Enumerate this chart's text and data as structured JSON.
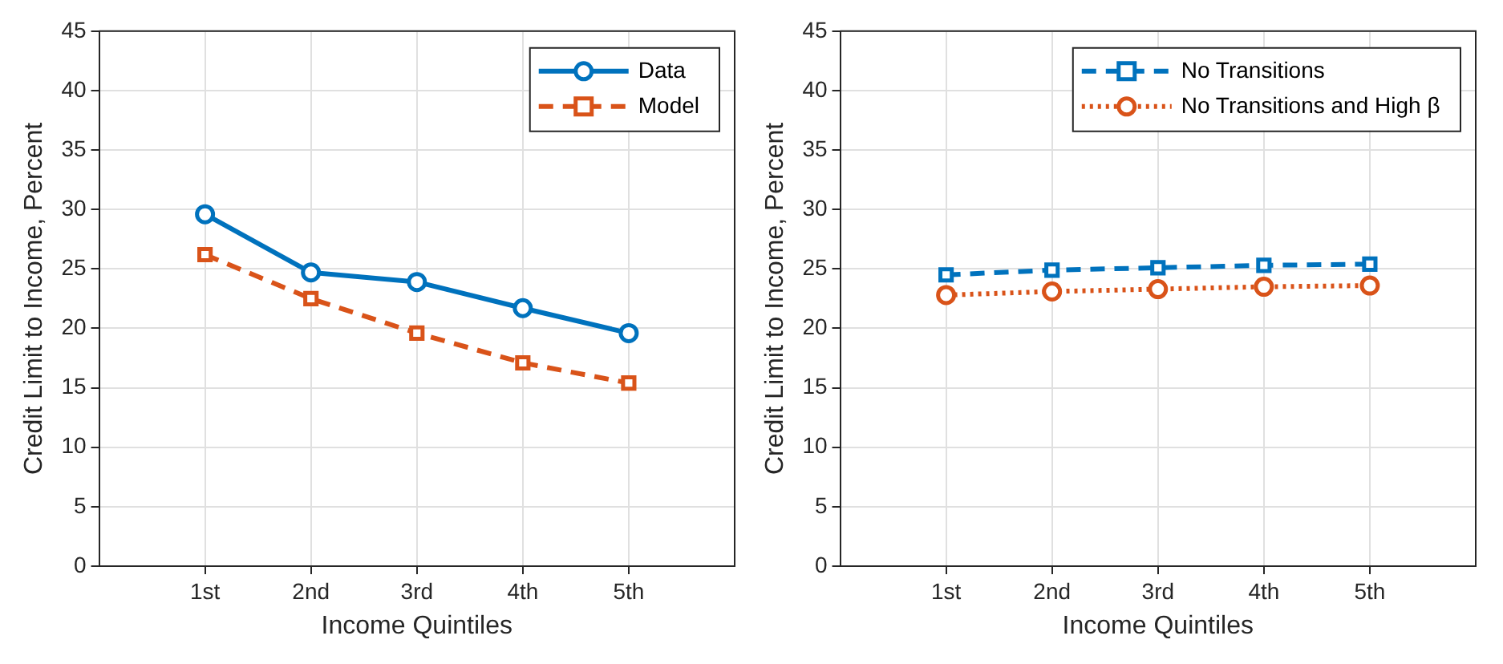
{
  "chart_data": [
    {
      "type": "line",
      "xlabel": "Income Quintiles",
      "ylabel": "Credit Limit to Income, Percent",
      "categories": [
        "1st",
        "2nd",
        "3rd",
        "4th",
        "5th"
      ],
      "ylim": [
        0,
        45
      ],
      "yticks": [
        0,
        5,
        10,
        15,
        20,
        25,
        30,
        35,
        40,
        45
      ],
      "grid": true,
      "legend": "top right",
      "series": [
        {
          "name": "Data",
          "color": "#0072bd",
          "line_style": "solid",
          "marker": "circle",
          "values": [
            29.6,
            24.7,
            23.9,
            21.7,
            19.6
          ]
        },
        {
          "name": "Model",
          "color": "#d95319",
          "line_style": "dashed",
          "marker": "square",
          "values": [
            26.2,
            22.5,
            19.6,
            17.1,
            15.4
          ]
        }
      ]
    },
    {
      "type": "line",
      "xlabel": "Income Quintiles",
      "ylabel": "Credit Limit to Income, Percent",
      "categories": [
        "1st",
        "2nd",
        "3rd",
        "4th",
        "5th"
      ],
      "ylim": [
        0,
        45
      ],
      "yticks": [
        0,
        5,
        10,
        15,
        20,
        25,
        30,
        35,
        40,
        45
      ],
      "grid": true,
      "legend": "top right",
      "series": [
        {
          "name": "No Transitions",
          "color": "#0072bd",
          "line_style": "dashed",
          "marker": "square",
          "values": [
            24.5,
            24.9,
            25.1,
            25.3,
            25.4
          ]
        },
        {
          "name": "No Transitions and High β",
          "color": "#d95319",
          "line_style": "dotted",
          "marker": "circle",
          "values": [
            22.8,
            23.1,
            23.3,
            23.5,
            23.6
          ]
        }
      ]
    }
  ]
}
